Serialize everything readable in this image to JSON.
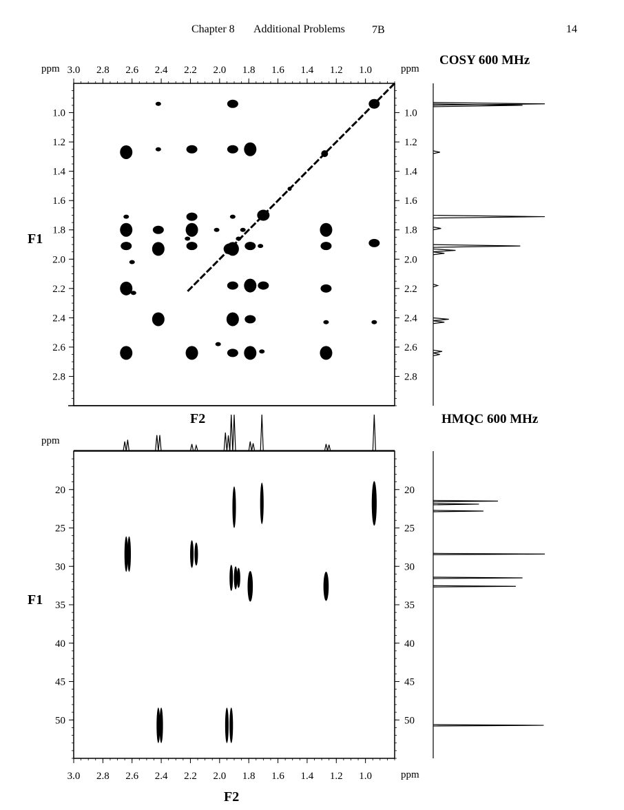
{
  "header": {
    "chapter": "Chapter 8",
    "section": "Additional Problems",
    "problem": "7B",
    "page_number": "14"
  },
  "chart_data": [
    {
      "type": "scatter",
      "title": "COSY 600 MHz",
      "xlabel": "F2",
      "ylabel": "F1",
      "unit_label": "ppm",
      "xlim": [
        3.0,
        0.8
      ],
      "ylim": [
        3.0,
        0.8
      ],
      "x_ticks": [
        "3.0",
        "2.8",
        "2.6",
        "2.4",
        "2.2",
        "2.0",
        "1.8",
        "1.6",
        "1.4",
        "1.2",
        "1.0"
      ],
      "y_ticks": [
        "1.0",
        "1.2",
        "1.4",
        "1.6",
        "1.8",
        "2.0",
        "2.2",
        "2.4",
        "2.6",
        "2.8"
      ],
      "diagonal": [
        0.8,
        2.22
      ],
      "peaks": [
        {
          "x": 2.64,
          "y": 1.27,
          "size": "large"
        },
        {
          "x": 2.64,
          "y": 1.8,
          "size": "large"
        },
        {
          "x": 2.64,
          "y": 1.91,
          "size": "medium"
        },
        {
          "x": 2.64,
          "y": 2.2,
          "size": "large"
        },
        {
          "x": 2.64,
          "y": 2.64,
          "size": "large"
        },
        {
          "x": 2.64,
          "y": 1.71,
          "size": "small"
        },
        {
          "x": 2.6,
          "y": 2.02,
          "size": "small"
        },
        {
          "x": 2.59,
          "y": 2.23,
          "size": "small"
        },
        {
          "x": 2.42,
          "y": 0.94,
          "size": "small"
        },
        {
          "x": 2.42,
          "y": 1.25,
          "size": "small"
        },
        {
          "x": 2.42,
          "y": 1.8,
          "size": "medium"
        },
        {
          "x": 2.42,
          "y": 1.93,
          "size": "large"
        },
        {
          "x": 2.42,
          "y": 2.41,
          "size": "large"
        },
        {
          "x": 2.19,
          "y": 1.25,
          "size": "medium"
        },
        {
          "x": 2.19,
          "y": 1.71,
          "size": "medium"
        },
        {
          "x": 2.19,
          "y": 1.8,
          "size": "large"
        },
        {
          "x": 2.19,
          "y": 1.91,
          "size": "medium"
        },
        {
          "x": 2.19,
          "y": 2.64,
          "size": "large"
        },
        {
          "x": 2.22,
          "y": 1.86,
          "size": "small"
        },
        {
          "x": 2.02,
          "y": 1.8,
          "size": "small"
        },
        {
          "x": 2.01,
          "y": 2.58,
          "size": "small"
        },
        {
          "x": 1.91,
          "y": 0.94,
          "size": "medium"
        },
        {
          "x": 1.91,
          "y": 1.25,
          "size": "medium"
        },
        {
          "x": 1.91,
          "y": 1.71,
          "size": "small"
        },
        {
          "x": 1.91,
          "y": 1.93,
          "size": "large"
        },
        {
          "x": 1.91,
          "y": 2.18,
          "size": "medium"
        },
        {
          "x": 1.91,
          "y": 2.41,
          "size": "large"
        },
        {
          "x": 1.91,
          "y": 2.64,
          "size": "medium"
        },
        {
          "x": 1.87,
          "y": 1.86,
          "size": "small"
        },
        {
          "x": 1.84,
          "y": 1.8,
          "size": "small"
        },
        {
          "x": 1.79,
          "y": 1.25,
          "size": "large"
        },
        {
          "x": 1.79,
          "y": 1.91,
          "size": "medium"
        },
        {
          "x": 1.79,
          "y": 2.18,
          "size": "large"
        },
        {
          "x": 1.79,
          "y": 2.41,
          "size": "medium"
        },
        {
          "x": 1.79,
          "y": 2.64,
          "size": "large"
        },
        {
          "x": 1.72,
          "y": 1.91,
          "size": "small"
        },
        {
          "x": 1.7,
          "y": 2.18,
          "size": "medium"
        },
        {
          "x": 1.71,
          "y": 2.63,
          "size": "small"
        },
        {
          "x": 1.27,
          "y": 1.8,
          "size": "large"
        },
        {
          "x": 1.27,
          "y": 1.91,
          "size": "medium"
        },
        {
          "x": 1.27,
          "y": 2.2,
          "size": "medium"
        },
        {
          "x": 1.27,
          "y": 2.43,
          "size": "small"
        },
        {
          "x": 1.27,
          "y": 2.64,
          "size": "large"
        },
        {
          "x": 0.94,
          "y": 1.89,
          "size": "medium"
        },
        {
          "x": 0.94,
          "y": 2.43,
          "size": "small"
        }
      ],
      "f1_projection_peaks": [
        {
          "ppm": 0.94,
          "height": 1.0
        },
        {
          "ppm": 0.95,
          "height": 0.8
        },
        {
          "ppm": 1.27,
          "height": 0.06
        },
        {
          "ppm": 1.71,
          "height": 1.0
        },
        {
          "ppm": 1.79,
          "height": 0.07
        },
        {
          "ppm": 1.91,
          "height": 0.78
        },
        {
          "ppm": 1.94,
          "height": 0.2
        },
        {
          "ppm": 1.96,
          "height": 0.1
        },
        {
          "ppm": 2.18,
          "height": 0.04
        },
        {
          "ppm": 2.41,
          "height": 0.14
        },
        {
          "ppm": 2.43,
          "height": 0.1
        },
        {
          "ppm": 2.63,
          "height": 0.08
        },
        {
          "ppm": 2.65,
          "height": 0.06
        }
      ]
    },
    {
      "type": "scatter",
      "title": "HMQC 600 MHz",
      "xlabel": "F2",
      "ylabel": "F1",
      "unit_label": "ppm",
      "xlim": [
        3.0,
        0.8
      ],
      "ylim": [
        15,
        55
      ],
      "x_ticks": [
        "3.0",
        "2.8",
        "2.6",
        "2.4",
        "2.2",
        "2.0",
        "1.8",
        "1.6",
        "1.4",
        "1.2",
        "1.0"
      ],
      "y_ticks": [
        "20",
        "25",
        "30",
        "35",
        "40",
        "45",
        "50"
      ],
      "peaks": [
        {
          "x": 2.64,
          "y": 28.4,
          "hw": 0.012,
          "span": 2.3
        },
        {
          "x": 2.62,
          "y": 28.4,
          "hw": 0.012,
          "span": 2.3
        },
        {
          "x": 2.19,
          "y": 28.4,
          "hw": 0.012,
          "span": 1.8
        },
        {
          "x": 2.16,
          "y": 28.4,
          "hw": 0.012,
          "span": 1.5
        },
        {
          "x": 2.42,
          "y": 50.7,
          "hw": 0.012,
          "span": 2.3
        },
        {
          "x": 2.4,
          "y": 50.7,
          "hw": 0.012,
          "span": 2.3
        },
        {
          "x": 1.95,
          "y": 50.7,
          "hw": 0.012,
          "span": 2.3
        },
        {
          "x": 1.92,
          "y": 50.7,
          "hw": 0.012,
          "span": 2.3
        },
        {
          "x": 1.9,
          "y": 22.3,
          "hw": 0.012,
          "span": 2.7
        },
        {
          "x": 1.71,
          "y": 21.8,
          "hw": 0.012,
          "span": 2.7
        },
        {
          "x": 0.94,
          "y": 21.8,
          "hw": 0.017,
          "span": 2.9
        },
        {
          "x": 1.92,
          "y": 31.5,
          "hw": 0.008,
          "span": 1.7
        },
        {
          "x": 1.89,
          "y": 31.5,
          "hw": 0.008,
          "span": 1.5
        },
        {
          "x": 1.87,
          "y": 31.5,
          "hw": 0.008,
          "span": 1.3
        },
        {
          "x": 1.79,
          "y": 32.6,
          "hw": 0.018,
          "span": 2.0
        },
        {
          "x": 1.27,
          "y": 32.6,
          "hw": 0.018,
          "span": 1.9
        }
      ],
      "f2_projection_peaks": [
        {
          "ppm": 2.65,
          "height": 0.25
        },
        {
          "ppm": 2.63,
          "height": 0.3
        },
        {
          "ppm": 2.43,
          "height": 0.43
        },
        {
          "ppm": 2.41,
          "height": 0.43
        },
        {
          "ppm": 2.19,
          "height": 0.18
        },
        {
          "ppm": 2.16,
          "height": 0.14
        },
        {
          "ppm": 1.96,
          "height": 0.5
        },
        {
          "ppm": 1.94,
          "height": 0.42
        },
        {
          "ppm": 1.92,
          "height": 1.0
        },
        {
          "ppm": 1.9,
          "height": 1.0
        },
        {
          "ppm": 1.79,
          "height": 0.25
        },
        {
          "ppm": 1.77,
          "height": 0.2
        },
        {
          "ppm": 1.71,
          "height": 1.0
        },
        {
          "ppm": 1.27,
          "height": 0.18
        },
        {
          "ppm": 1.25,
          "height": 0.16
        },
        {
          "ppm": 0.94,
          "height": 1.0
        }
      ],
      "f1_projection_peaks": [
        {
          "ppm": 21.5,
          "height": 0.58
        },
        {
          "ppm": 21.9,
          "height": 0.41
        },
        {
          "ppm": 22.8,
          "height": 0.45
        },
        {
          "ppm": 28.4,
          "height": 1.0
        },
        {
          "ppm": 31.5,
          "height": 0.8
        },
        {
          "ppm": 32.6,
          "height": 0.74
        },
        {
          "ppm": 50.7,
          "height": 0.99
        }
      ]
    }
  ]
}
